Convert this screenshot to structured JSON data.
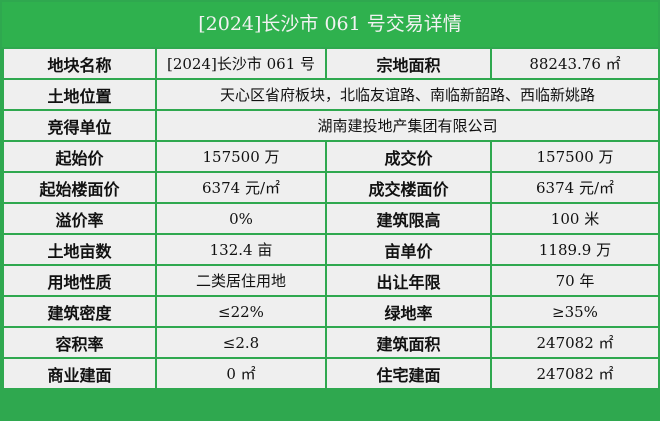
{
  "title": "[2024]长沙市 061 号交易详情",
  "colors": {
    "header_bg": "#2fb14e",
    "border": "#2fa84f",
    "cell_bg": "#efefef"
  },
  "rows": [
    {
      "l1": "地块名称",
      "v1": "[2024]长沙市 061 号",
      "l2": "宗地面积",
      "v2": "88243.76 ㎡"
    },
    {
      "l1": "土地位置",
      "v1": "天心区省府板块，北临友谊路、南临新韶路、西临新姚路"
    },
    {
      "l1": "竞得单位",
      "v1": "湖南建投地产集团有限公司"
    },
    {
      "l1": "起始价",
      "v1": "157500 万",
      "l2": "成交价",
      "v2": "157500 万"
    },
    {
      "l1": "起始楼面价",
      "v1": "6374 元/㎡",
      "l2": "成交楼面价",
      "v2": "6374 元/㎡"
    },
    {
      "l1": "溢价率",
      "v1": "0%",
      "l2": "建筑限高",
      "v2": "100 米"
    },
    {
      "l1": "土地亩数",
      "v1": "132.4 亩",
      "l2": "亩单价",
      "v2": "1189.9 万"
    },
    {
      "l1": "用地性质",
      "v1": "二类居住用地",
      "l2": "出让年限",
      "v2": "70 年"
    },
    {
      "l1": "建筑密度",
      "v1": "≤22%",
      "l2": "绿地率",
      "v2": "≥35%"
    },
    {
      "l1": "容积率",
      "v1": "≤2.8",
      "l2": "建筑面积",
      "v2": "247082 ㎡"
    },
    {
      "l1": "商业建面",
      "v1": "0 ㎡",
      "l2": "住宅建面",
      "v2": "247082 ㎡"
    }
  ]
}
